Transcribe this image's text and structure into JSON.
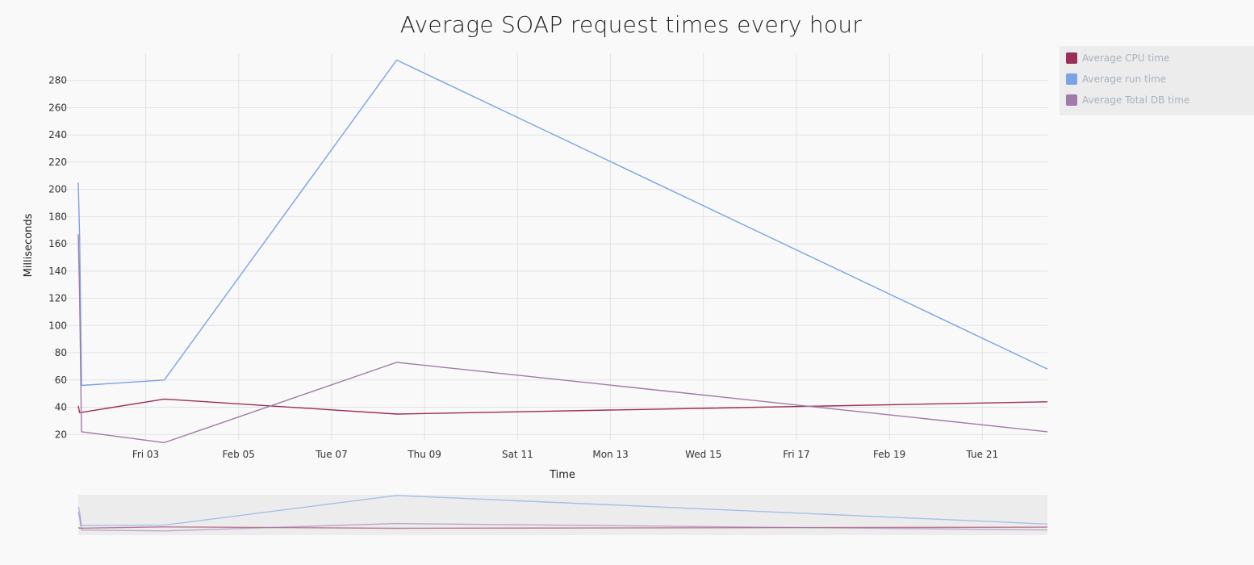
{
  "chart_data": {
    "type": "line",
    "title": "Average SOAP request times every hour",
    "xlabel": "Time",
    "ylabel": "Milliseconds",
    "x_ticks": [
      "Fri 03",
      "Feb 05",
      "Tue 07",
      "Thu 09",
      "Sat 11",
      "Mon 13",
      "Wed 15",
      "Fri 17",
      "Feb 19",
      "Tue 21"
    ],
    "x_tick_days": [
      3,
      5,
      7,
      9,
      11,
      13,
      15,
      17,
      19,
      21
    ],
    "x_range_days": [
      1.55,
      22.4
    ],
    "y_ticks": [
      20,
      40,
      60,
      80,
      100,
      120,
      140,
      160,
      180,
      200,
      220,
      240,
      260,
      280
    ],
    "ylim": [
      16,
      300
    ],
    "grid": true,
    "legend_position": "top-right",
    "series": [
      {
        "name": "Average CPU time",
        "color": "#9b2e56",
        "x": [
          1.55,
          1.58,
          3.4,
          8.4,
          22.4
        ],
        "y": [
          41,
          36,
          46,
          35,
          44
        ]
      },
      {
        "name": "Average run time",
        "color": "#7aa2e4",
        "x": [
          1.55,
          1.58,
          1.62,
          3.4,
          8.4,
          22.4
        ],
        "y": [
          205,
          165,
          56,
          60,
          295,
          68
        ]
      },
      {
        "name": "Average Total DB time",
        "color": "#a07aa8",
        "x": [
          1.55,
          1.58,
          1.62,
          3.4,
          8.4,
          22.4
        ],
        "y": [
          167,
          120,
          22,
          14,
          73,
          22
        ]
      }
    ]
  }
}
